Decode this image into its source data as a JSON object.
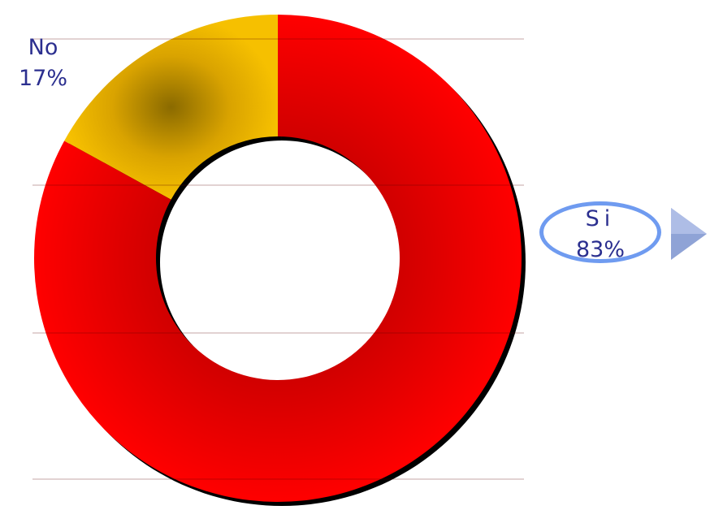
{
  "chart_data": {
    "type": "donut",
    "slices": [
      {
        "name": "No",
        "value": 17,
        "percent_label": "17%",
        "color": "#f4b400"
      },
      {
        "name": "Si",
        "value": 83,
        "percent_label": "83%",
        "color": "#ff0000"
      }
    ]
  },
  "colors": {
    "label_text": "#2b2f8f",
    "callout_border": "#6f9bf0",
    "arrow_fill": "#8fa3d6"
  },
  "icons": {
    "callout_arrow": "triangle-right-icon"
  }
}
